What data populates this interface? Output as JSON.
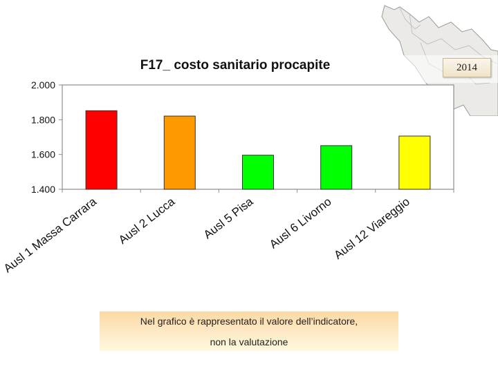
{
  "badge": {
    "year": "2014"
  },
  "note": {
    "line1": "Nel grafico è rappresentato il valore dell’indicatore,",
    "line2": "non la valutazione"
  },
  "chart_data": {
    "type": "bar",
    "title": "F17_ costo sanitario procapite",
    "xlabel": "",
    "ylabel": "",
    "categories": [
      "Ausl 1 Massa Carrara",
      "Ausl 2 Lucca",
      "Ausl 5 Pisa",
      "Ausl 6 Livorno",
      "Ausl 12 Viareggio"
    ],
    "values": [
      1852,
      1821,
      1596,
      1651,
      1706
    ],
    "colors": [
      "#ff0000",
      "#ff9900",
      "#00ff00",
      "#00ff00",
      "#ffff00"
    ],
    "ylim": [
      1400,
      2000
    ],
    "yticks": [
      "1.400",
      "1.600",
      "1.800",
      "2.000"
    ],
    "grid": false,
    "legend": "none"
  }
}
